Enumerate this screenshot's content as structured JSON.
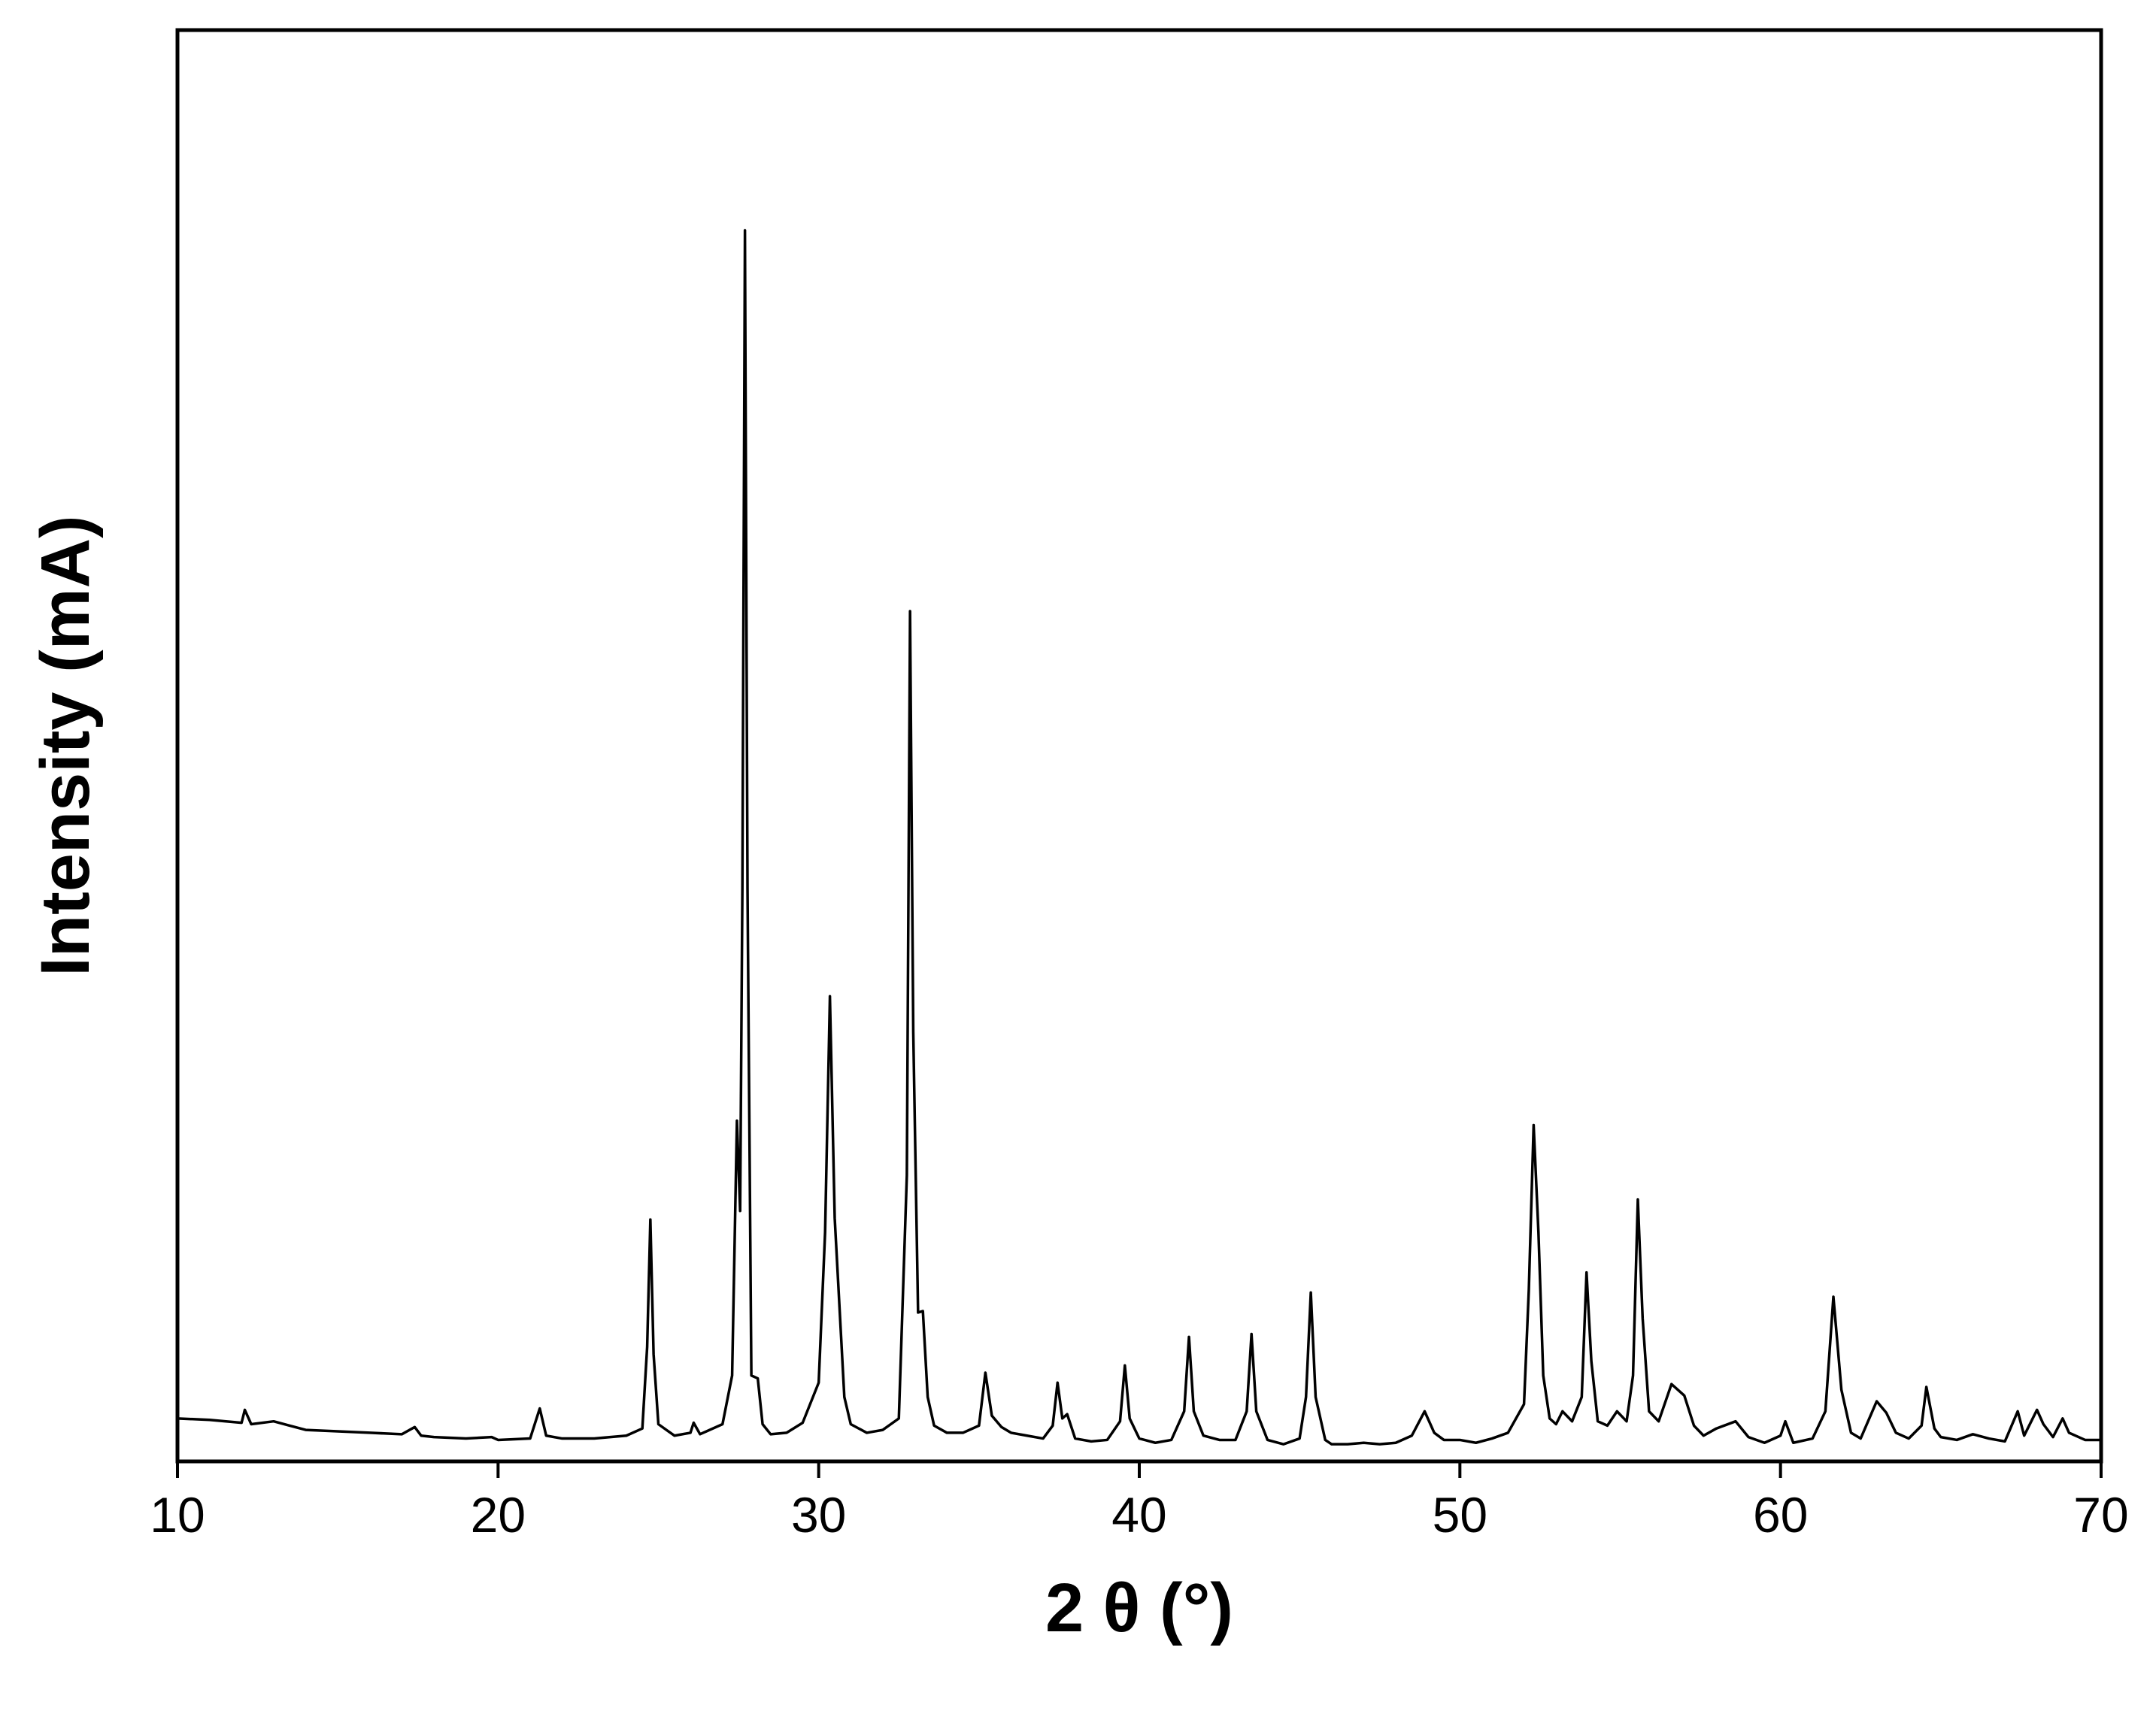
{
  "chart_data": {
    "type": "line",
    "x_label": "2 θ (°)",
    "y_label": "Intensity (mA)",
    "color": "#000000",
    "grid": false,
    "xlim": [
      10,
      70
    ],
    "ylim": [
      0,
      100
    ],
    "xticks": [
      10,
      20,
      30,
      40,
      50,
      60,
      70
    ],
    "x": [
      10,
      11,
      12,
      12.1,
      12.3,
      13,
      14,
      15,
      16,
      17,
      17.4,
      17.6,
      18,
      19,
      19.8,
      20,
      21,
      21.3,
      21.5,
      22,
      23,
      24,
      24.5,
      24.65,
      24.75,
      24.85,
      25,
      25.5,
      26,
      26.1,
      26.3,
      27,
      27.3,
      27.45,
      27.55,
      27.62,
      27.7,
      27.78,
      27.9,
      28.1,
      28.25,
      28.5,
      29,
      29.5,
      30,
      30.2,
      30.35,
      30.5,
      30.8,
      31,
      31.5,
      32,
      32.5,
      32.75,
      32.85,
      32.95,
      33.1,
      33.25,
      33.4,
      33.6,
      34,
      34.5,
      35,
      35.2,
      35.4,
      35.7,
      36,
      36.5,
      37,
      37.3,
      37.45,
      37.6,
      37.75,
      38,
      38.5,
      39,
      39.4,
      39.55,
      39.7,
      40,
      40.5,
      41,
      41.4,
      41.55,
      41.7,
      42,
      42.5,
      43,
      43.35,
      43.5,
      43.65,
      44,
      44.5,
      45,
      45.2,
      45.35,
      45.5,
      45.8,
      46,
      46.5,
      47,
      47.5,
      48,
      48.5,
      48.9,
      49.2,
      49.5,
      50,
      50.5,
      51,
      51.5,
      52,
      52.15,
      52.3,
      52.45,
      52.6,
      52.8,
      53,
      53.2,
      53.5,
      53.8,
      53.95,
      54.1,
      54.3,
      54.6,
      54.9,
      55.2,
      55.4,
      55.55,
      55.7,
      55.9,
      56.2,
      56.6,
      57,
      57.3,
      57.6,
      58,
      58.6,
      59,
      59.5,
      60,
      60.15,
      60.4,
      61,
      61.4,
      61.65,
      61.9,
      62.2,
      62.5,
      63,
      63.3,
      63.6,
      64,
      64.4,
      64.55,
      64.8,
      65,
      65.5,
      66,
      66.5,
      67,
      67.4,
      67.6,
      68,
      68.2,
      68.5,
      68.8,
      69,
      69.5,
      70
    ],
    "values": [
      3.0,
      2.9,
      2.7,
      3.6,
      2.6,
      2.8,
      2.2,
      2.1,
      2.0,
      1.9,
      2.4,
      1.8,
      1.7,
      1.6,
      1.7,
      1.5,
      1.6,
      3.7,
      1.8,
      1.6,
      1.6,
      1.8,
      2.3,
      8.0,
      16.9,
      7.5,
      2.6,
      1.8,
      2.0,
      2.7,
      1.9,
      2.6,
      6.0,
      23.8,
      17.5,
      40,
      86.0,
      40,
      6.0,
      5.8,
      2.6,
      1.9,
      2.0,
      2.7,
      5.5,
      16,
      32.5,
      17,
      4.5,
      2.6,
      2.0,
      2.2,
      3.0,
      20,
      59.4,
      30,
      10.4,
      10.5,
      4.5,
      2.5,
      2.0,
      2.0,
      2.5,
      6.2,
      3.2,
      2.4,
      2.0,
      1.8,
      1.6,
      2.5,
      5.5,
      3.0,
      3.3,
      1.6,
      1.4,
      1.5,
      2.8,
      6.7,
      3.0,
      1.6,
      1.3,
      1.5,
      3.5,
      8.7,
      3.5,
      1.8,
      1.5,
      1.5,
      3.5,
      8.9,
      3.5,
      1.5,
      1.2,
      1.6,
      4.5,
      11.8,
      4.5,
      1.5,
      1.2,
      1.2,
      1.3,
      1.2,
      1.3,
      1.8,
      3.5,
      2.0,
      1.5,
      1.5,
      1.3,
      1.6,
      2.0,
      4.0,
      12,
      23.5,
      16,
      6.0,
      3.0,
      2.6,
      3.5,
      2.8,
      4.5,
      13.2,
      7.0,
      2.8,
      2.5,
      3.5,
      2.8,
      6.0,
      18.3,
      10,
      3.5,
      2.8,
      5.4,
      4.6,
      2.5,
      1.8,
      2.3,
      2.8,
      1.7,
      1.3,
      1.8,
      2.8,
      1.3,
      1.6,
      3.5,
      11.5,
      5.0,
      2.0,
      1.6,
      4.2,
      3.4,
      2.0,
      1.6,
      2.5,
      5.2,
      2.3,
      1.7,
      1.5,
      1.9,
      1.6,
      1.4,
      3.5,
      1.8,
      3.6,
      2.6,
      1.7,
      3.0,
      2.0,
      1.5,
      1.5
    ]
  }
}
